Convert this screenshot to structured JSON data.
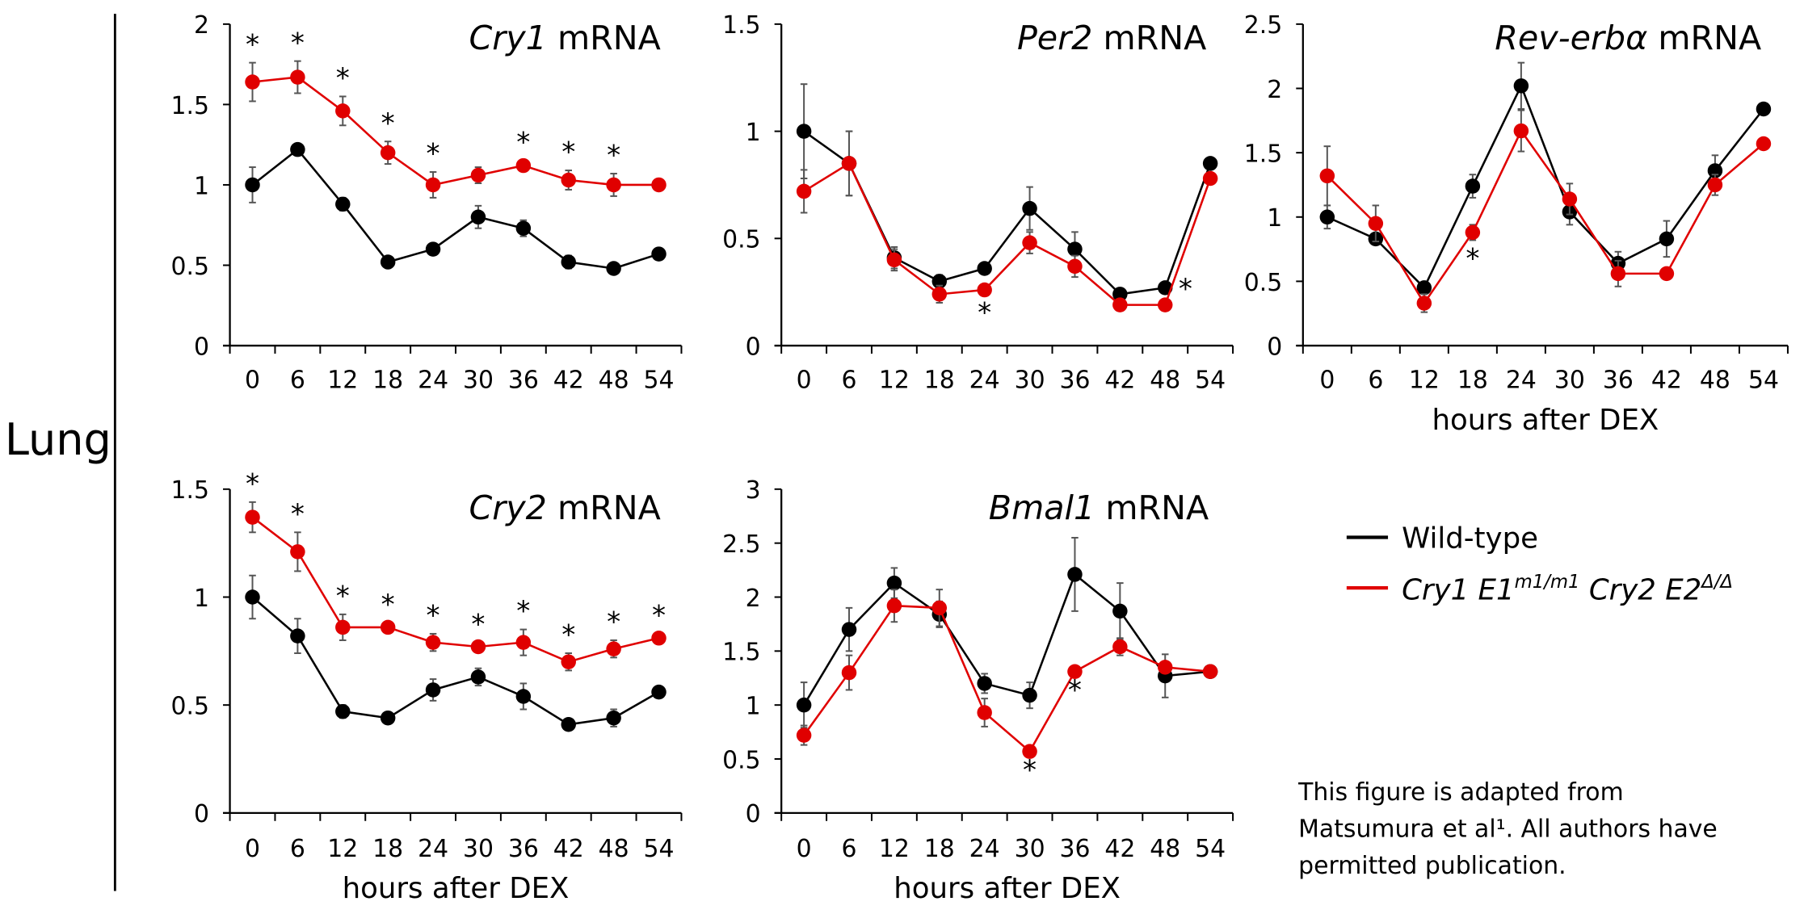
{
  "side_label": "Lung",
  "legend": {
    "items": [
      {
        "label": "Wild-type",
        "color": "#000000"
      },
      {
        "label_parts": [
          {
            "text": "Cry1 E1",
            "style": "italic"
          },
          {
            "text": "m1/m1",
            "style": "italic-sup"
          },
          {
            "text": " Cry2 E2",
            "style": "italic"
          },
          {
            "text": "Δ/Δ",
            "style": "italic-sup"
          }
        ],
        "color": "#e00000"
      }
    ]
  },
  "note": [
    "This figure is adapted from",
    "Matsumura et al¹. All authors have",
    "permitted publication."
  ],
  "chart_data": [
    {
      "type": "line",
      "title_italic": "Cry1",
      "title_rest": " mRNA",
      "xlabel": "",
      "categories": [
        0,
        6,
        12,
        18,
        24,
        30,
        36,
        42,
        48,
        54
      ],
      "ylim": [
        0,
        2
      ],
      "yticks": [
        "0",
        "0.5",
        "1",
        "1.5",
        "2"
      ],
      "series": [
        {
          "name": "Wild-type",
          "color": "#000000",
          "values": [
            1.0,
            1.22,
            0.88,
            0.52,
            0.6,
            0.8,
            0.73,
            0.52,
            0.48,
            0.57
          ],
          "errors": [
            0.11,
            0.02,
            0.04,
            0.02,
            0.03,
            0.07,
            0.05,
            0.04,
            0.02,
            0.02
          ]
        },
        {
          "name": "Cry1 E1m1/m1 Cry2 E2Δ/Δ",
          "color": "#e00000",
          "values": [
            1.64,
            1.67,
            1.46,
            1.2,
            1.0,
            1.06,
            1.12,
            1.03,
            1.0,
            1.0
          ],
          "errors": [
            0.12,
            0.1,
            0.09,
            0.07,
            0.08,
            0.05,
            0.03,
            0.06,
            0.07,
            0.0
          ]
        }
      ],
      "significance": [
        {
          "time": 0,
          "placement": "above"
        },
        {
          "time": 6,
          "placement": "above"
        },
        {
          "time": 12,
          "placement": "above"
        },
        {
          "time": 18,
          "placement": "above"
        },
        {
          "time": 24,
          "placement": "above"
        },
        {
          "time": 36,
          "placement": "above"
        },
        {
          "time": 42,
          "placement": "above"
        },
        {
          "time": 48,
          "placement": "above"
        }
      ]
    },
    {
      "type": "line",
      "title_italic": "Per2",
      "title_rest": "  mRNA",
      "xlabel": "",
      "categories": [
        0,
        6,
        12,
        18,
        24,
        30,
        36,
        42,
        48,
        54
      ],
      "ylim": [
        0,
        1.5
      ],
      "yticks": [
        "0",
        "0.5",
        "1",
        "1.5"
      ],
      "series": [
        {
          "name": "Wild-type",
          "color": "#000000",
          "values": [
            1.0,
            0.85,
            0.41,
            0.3,
            0.36,
            0.64,
            0.45,
            0.24,
            0.27,
            0.85
          ],
          "errors": [
            0.22,
            0.15,
            0.05,
            0.03,
            0.02,
            0.1,
            0.08,
            0.02,
            0.02,
            0.0
          ]
        },
        {
          "name": "Cry1 E1m1/m1 Cry2 E2Δ/Δ",
          "color": "#e00000",
          "values": [
            0.72,
            0.85,
            0.4,
            0.24,
            0.26,
            0.48,
            0.37,
            0.19,
            0.19,
            0.78
          ],
          "errors": [
            0.1,
            0.15,
            0.05,
            0.04,
            0.02,
            0.05,
            0.05,
            0.01,
            0.01,
            0.0
          ]
        }
      ],
      "significance": [
        {
          "time": 24,
          "placement": "below"
        },
        {
          "time": 54,
          "placement": "left"
        }
      ]
    },
    {
      "type": "line",
      "title_italic": "Rev-erbα",
      "title_rest": " mRNA",
      "xlabel": "hours after DEX",
      "categories": [
        0,
        6,
        12,
        18,
        24,
        30,
        36,
        42,
        48,
        54
      ],
      "ylim": [
        0,
        2.5
      ],
      "yticks": [
        "0",
        "0.5",
        "1",
        "1.5",
        "2",
        "2.5"
      ],
      "series": [
        {
          "name": "Wild-type",
          "color": "#000000",
          "values": [
            1.0,
            0.83,
            0.45,
            1.24,
            2.02,
            1.04,
            0.64,
            0.83,
            1.36,
            1.84
          ],
          "errors": [
            0.09,
            0.04,
            0.04,
            0.09,
            0.18,
            0.1,
            0.09,
            0.14,
            0.12,
            0.0
          ]
        },
        {
          "name": "Cry1 E1m1/m1 Cry2 E2Δ/Δ",
          "color": "#e00000",
          "values": [
            1.32,
            0.95,
            0.33,
            0.88,
            1.67,
            1.14,
            0.56,
            0.56,
            1.25,
            1.57
          ],
          "errors": [
            0.23,
            0.14,
            0.07,
            0.06,
            0.16,
            0.12,
            0.1,
            0.0,
            0.08,
            0.0
          ]
        }
      ],
      "significance": [
        {
          "time": 18,
          "placement": "below"
        }
      ]
    },
    {
      "type": "line",
      "title_italic": "Cry2",
      "title_rest": " mRNA",
      "xlabel": "hours after DEX",
      "categories": [
        0,
        6,
        12,
        18,
        24,
        30,
        36,
        42,
        48,
        54
      ],
      "ylim": [
        0,
        1.5
      ],
      "yticks": [
        "0",
        "0.5",
        "1",
        "1.5"
      ],
      "series": [
        {
          "name": "Wild-type",
          "color": "#000000",
          "values": [
            1.0,
            0.82,
            0.47,
            0.44,
            0.57,
            0.63,
            0.54,
            0.41,
            0.44,
            0.56
          ],
          "errors": [
            0.1,
            0.08,
            0.03,
            0.02,
            0.05,
            0.04,
            0.06,
            0.02,
            0.04,
            0.02
          ]
        },
        {
          "name": "Cry1 E1m1/m1 Cry2 E2Δ/Δ",
          "color": "#e00000",
          "values": [
            1.37,
            1.21,
            0.86,
            0.86,
            0.79,
            0.77,
            0.79,
            0.7,
            0.76,
            0.81
          ],
          "errors": [
            0.07,
            0.09,
            0.06,
            0.02,
            0.04,
            0.02,
            0.06,
            0.04,
            0.04,
            0.02
          ]
        }
      ],
      "significance": [
        {
          "time": 0,
          "placement": "above"
        },
        {
          "time": 6,
          "placement": "above"
        },
        {
          "time": 12,
          "placement": "above"
        },
        {
          "time": 18,
          "placement": "above"
        },
        {
          "time": 24,
          "placement": "above"
        },
        {
          "time": 30,
          "placement": "above"
        },
        {
          "time": 36,
          "placement": "above"
        },
        {
          "time": 42,
          "placement": "above"
        },
        {
          "time": 48,
          "placement": "above"
        },
        {
          "time": 54,
          "placement": "above"
        }
      ]
    },
    {
      "type": "line",
      "title_italic": "Bmal1",
      "title_rest": " mRNA",
      "xlabel": "hours after DEX",
      "categories": [
        0,
        6,
        12,
        18,
        24,
        30,
        36,
        42,
        48,
        54
      ],
      "ylim": [
        0,
        3
      ],
      "yticks": [
        "0",
        "0.5",
        "1",
        "1.5",
        "2",
        "2.5",
        "3"
      ],
      "series": [
        {
          "name": "Wild-type",
          "color": "#000000",
          "values": [
            1.0,
            1.7,
            2.13,
            1.84,
            1.2,
            1.09,
            2.21,
            1.87,
            1.27,
            1.31
          ],
          "errors": [
            0.21,
            0.2,
            0.14,
            0.12,
            0.09,
            0.12,
            0.34,
            0.26,
            0.2,
            0.0
          ]
        },
        {
          "name": "Cry1 E1m1/m1 Cry2 E2Δ/Δ",
          "color": "#e00000",
          "values": [
            0.72,
            1.3,
            1.92,
            1.9,
            0.93,
            0.57,
            1.31,
            1.54,
            1.35,
            1.31
          ],
          "errors": [
            0.09,
            0.16,
            0.15,
            0.17,
            0.13,
            0.0,
            0.0,
            0.08,
            0.05,
            0.0
          ]
        }
      ],
      "significance": [
        {
          "time": 30,
          "placement": "below"
        },
        {
          "time": 36,
          "placement": "below"
        }
      ]
    }
  ]
}
